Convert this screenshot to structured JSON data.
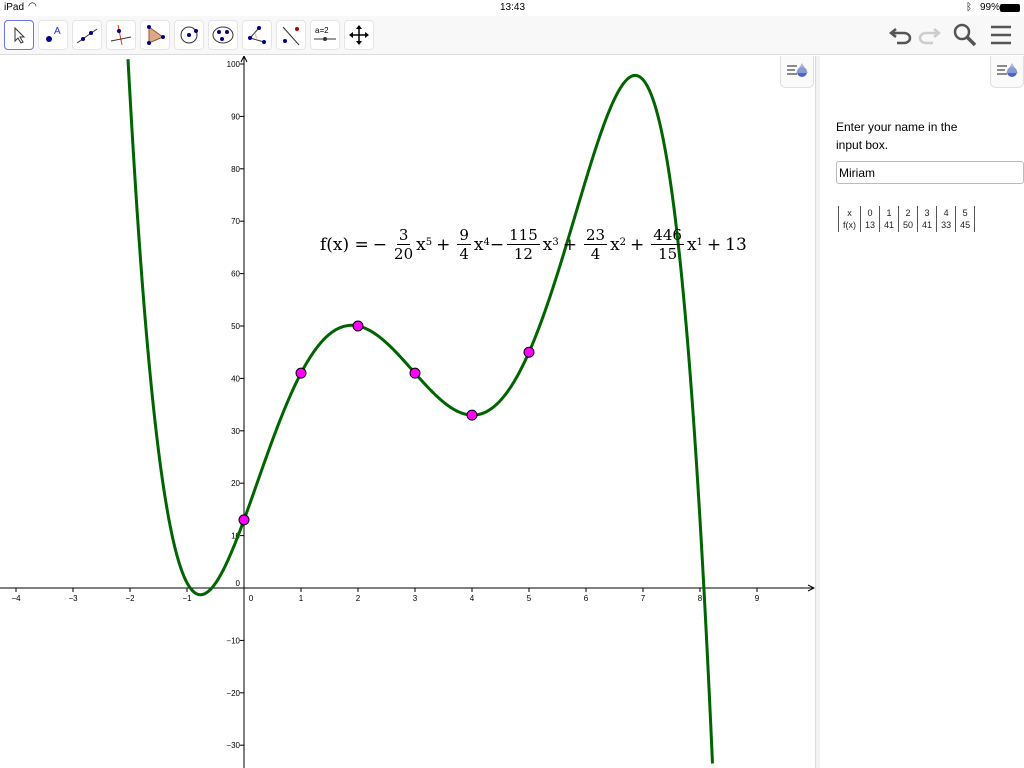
{
  "status": {
    "device": "iPad",
    "time": "13:43",
    "battery": "99%"
  },
  "toolbar": {
    "tools": [
      "move-tool",
      "point-tool",
      "line-tool",
      "perpendicular-line-tool",
      "polygon-tool",
      "circle-tool",
      "conic-tool",
      "angle-tool",
      "reflect-tool",
      "slider-tool",
      "move-graphics-view-tool"
    ],
    "right": [
      "undo",
      "redo",
      "search",
      "menu"
    ]
  },
  "formula": {
    "lhs": "f(x) =",
    "s1": "−",
    "f1n": "3",
    "f1d": "20",
    "t1": "x",
    "e1": "5",
    "s2": "+",
    "f2n": "9",
    "f2d": "4",
    "t2": "x",
    "e2": "4",
    "s3": "−",
    "f3n": "115",
    "f3d": "12",
    "t3": "x",
    "e3": "3",
    "s4": "+",
    "f4n": "23",
    "f4d": "4",
    "t4": "x",
    "e4": "2",
    "s5": "+",
    "f5n": "446",
    "f5d": "15",
    "t5": "x",
    "e5": "1",
    "s6": "+",
    "c": "13"
  },
  "sidebar": {
    "prompt_line1": "Enter your name in the",
    "prompt_line2": "input box.",
    "name_value": "Miriam",
    "table": {
      "header": [
        "x",
        "f(x)"
      ],
      "columns": [
        [
          "0",
          "13"
        ],
        [
          "1",
          "41"
        ],
        [
          "2",
          "50"
        ],
        [
          "3",
          "41"
        ],
        [
          "4",
          "33"
        ],
        [
          "5",
          "45"
        ]
      ]
    }
  },
  "chart_data": {
    "type": "line",
    "function": "f(x) = -3/20 x^5 + 9/4 x^4 - 115/12 x^3 + 23/4 x^2 + 446/15 x + 13",
    "coefficients": [
      -0.15,
      2.25,
      -9.583333,
      5.75,
      29.733333,
      13
    ],
    "points": [
      [
        0,
        13
      ],
      [
        1,
        41
      ],
      [
        2,
        50
      ],
      [
        3,
        41
      ],
      [
        4,
        33
      ],
      [
        5,
        45
      ]
    ],
    "xlim": [
      -4.3,
      10
    ],
    "ylim": [
      -34,
      100
    ],
    "xticks": [
      -4,
      -3,
      -2,
      -1,
      0,
      1,
      2,
      3,
      4,
      5,
      6,
      7,
      8,
      9
    ],
    "yticks": [
      -30,
      -20,
      -10,
      0,
      10,
      20,
      30,
      40,
      50,
      60,
      70,
      80,
      90,
      100
    ],
    "grid": false,
    "curve_color": "#006400",
    "point_color": "#ff00ff"
  }
}
